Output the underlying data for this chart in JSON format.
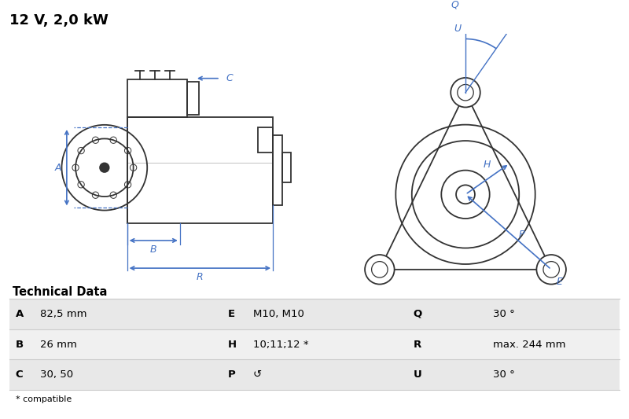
{
  "title": "12 V, 2,0 kW",
  "title_fontsize": 13,
  "bg_color": "#ffffff",
  "blue": "#4472c4",
  "line_color": "#333333",
  "table_header": "Technical Data",
  "table_rows": [
    [
      "A",
      "82,5 mm",
      "E",
      "M10, M10",
      "Q",
      "30 °"
    ],
    [
      "B",
      "26 mm",
      "H",
      "10;11;12 *",
      "R",
      "max. 244 mm"
    ],
    [
      "C",
      "30, 50",
      "P",
      "↺",
      "U",
      "30 °"
    ]
  ],
  "footnote": "* compatible",
  "row_bg_odd": "#e8e8e8",
  "row_bg_even": "#f0f0f0",
  "sep_line_color": "#cccccc"
}
